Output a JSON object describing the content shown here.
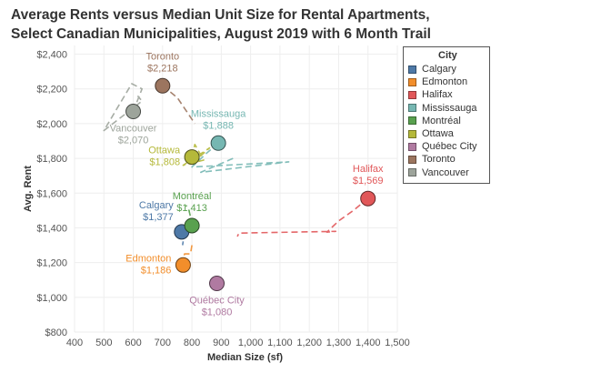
{
  "title_lines": [
    "Average Rents versus Median Unit Size for Rental Apartments,",
    "Select Canadian Municipalities, August 2019 with 6 Month Trail"
  ],
  "legend": {
    "title": "City"
  },
  "chart_data": {
    "type": "scatter",
    "xlabel": "Median Size (sf)",
    "ylabel": "Avg. Rent",
    "xlim": [
      400,
      1500
    ],
    "ylim": [
      800,
      2450
    ],
    "xticks": [
      "400",
      "500",
      "600",
      "700",
      "800",
      "900",
      "1,000",
      "1,100",
      "1,200",
      "1,300",
      "1,400",
      "1,500"
    ],
    "yticks": [
      "$800",
      "$1,000",
      "$1,200",
      "$1,400",
      "$1,600",
      "$1,800",
      "$2,000",
      "$2,200",
      "$2,400"
    ],
    "grid": true,
    "legend_position": "right",
    "series": [
      {
        "name": "Calgary",
        "color": "#4e79a7",
        "x": 765,
        "y": 1377,
        "label": "$1,377",
        "label_pos": "upper-left",
        "trail": [
          [
            765,
            1377
          ],
          [
            768,
            1355
          ],
          [
            772,
            1342
          ],
          [
            770,
            1320
          ],
          [
            768,
            1300
          ]
        ]
      },
      {
        "name": "Edmonton",
        "color": "#f28e2b",
        "x": 770,
        "y": 1186,
        "label": "$1,186",
        "label_pos": "left",
        "trail": [
          [
            770,
            1186
          ],
          [
            768,
            1215
          ],
          [
            775,
            1250
          ],
          [
            795,
            1250
          ],
          [
            800,
            1300
          ]
        ]
      },
      {
        "name": "Halifax",
        "color": "#e15759",
        "x": 1400,
        "y": 1569,
        "label": "$1,569",
        "label_pos": "above",
        "trail": [
          [
            1400,
            1569
          ],
          [
            1350,
            1500
          ],
          [
            1300,
            1440
          ],
          [
            1260,
            1375
          ],
          [
            1290,
            1380
          ],
          [
            960,
            1370
          ],
          [
            955,
            1350
          ]
        ]
      },
      {
        "name": "Mississauga",
        "color": "#76b7b2",
        "x": 890,
        "y": 1888,
        "label": "$1,888",
        "label_pos": "above",
        "trail": [
          [
            890,
            1888
          ],
          [
            850,
            1830
          ],
          [
            800,
            1750
          ],
          [
            1130,
            1780
          ],
          [
            830,
            1720
          ],
          [
            940,
            1800
          ]
        ]
      },
      {
        "name": "Montréal",
        "color": "#59a14f",
        "x": 800,
        "y": 1413,
        "label": "$1,413",
        "label_pos": "above",
        "trail": [
          [
            800,
            1413
          ],
          [
            797,
            1450
          ],
          [
            790,
            1500
          ],
          [
            780,
            1530
          ]
        ]
      },
      {
        "name": "Ottawa",
        "color": "#b5b93a",
        "x": 800,
        "y": 1808,
        "label": "$1,808",
        "label_pos": "left",
        "trail": [
          [
            800,
            1808
          ],
          [
            810,
            1880
          ],
          [
            840,
            1790
          ],
          [
            770,
            1760
          ],
          [
            860,
            1860
          ],
          [
            820,
            1800
          ]
        ]
      },
      {
        "name": "Québec City",
        "color": "#b07aa1",
        "x": 885,
        "y": 1080,
        "label": "$1,080",
        "label_pos": "below",
        "trail": [
          [
            885,
            1080
          ],
          [
            880,
            1060
          ],
          [
            878,
            1040
          ]
        ]
      },
      {
        "name": "Toronto",
        "color": "#9c755f",
        "x": 700,
        "y": 2218,
        "label": "$2,218",
        "label_pos": "above",
        "trail": [
          [
            700,
            2218
          ],
          [
            750,
            2150
          ],
          [
            810,
            2000
          ]
        ]
      },
      {
        "name": "Vancouver",
        "color": "#9da49b",
        "x": 600,
        "y": 2070,
        "label": "$2,070",
        "label_pos": "below",
        "trail": [
          [
            600,
            2070
          ],
          [
            630,
            2200
          ],
          [
            595,
            2230
          ],
          [
            500,
            1960
          ],
          [
            630,
            2130
          ],
          [
            615,
            2160
          ]
        ]
      }
    ]
  }
}
